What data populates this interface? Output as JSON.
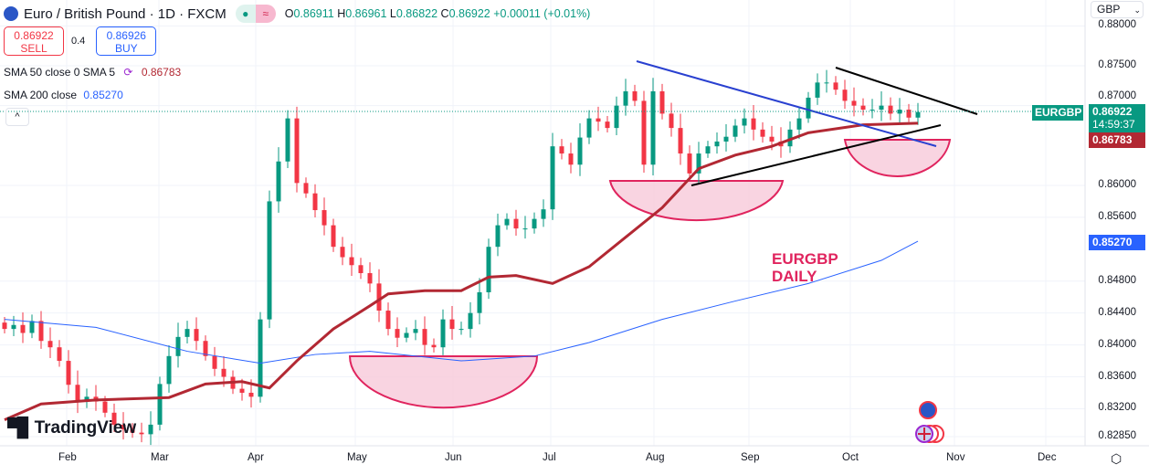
{
  "header": {
    "title": "Euro / British Pound · 1D · FXCM",
    "o_label": "O",
    "o": "0.86911",
    "h_label": "H",
    "h": "0.86961",
    "l_label": "L",
    "l": "0.86822",
    "c_label": "C",
    "c": "0.86922",
    "change": "+0.00011 (+0.01%)",
    "status_icon": "market-open-dot",
    "wave_icon": "≈"
  },
  "trade": {
    "sell_price": "0.86922",
    "sell_label": "SELL",
    "spread": "0.4",
    "buy_price": "0.86926",
    "buy_label": "BUY"
  },
  "indicators": {
    "sma50_label": "SMA 50 close 0 SMA 5",
    "sma50_value": "0.86783",
    "sma200_label": "SMA 200 close",
    "sma200_value": "0.85270"
  },
  "currency": "GBP",
  "collapse_icon": "^",
  "price_tags": {
    "symbol": "EURGBP",
    "last": "0.86922",
    "countdown": "14:59:37",
    "sma50": "0.86783",
    "sma200": "0.85270"
  },
  "annotation": {
    "line1": "EURGBP",
    "line2": "DAILY"
  },
  "logo": "TradingView",
  "colors": {
    "up": "#089981",
    "down": "#f23645",
    "sma50": "#b22833",
    "sma200": "#2962ff",
    "trend_blue": "#2940d0",
    "bowl": "#f8c9da",
    "bowl_edge": "#e0245e"
  },
  "chart_data": {
    "type": "candlestick",
    "title": "Euro / British Pound · 1D · FXCM",
    "x_tick_labels": [
      "Feb",
      "Mar",
      "Apr",
      "May",
      "Jun",
      "Jul",
      "Aug",
      "Sep",
      "Oct",
      "Nov",
      "Dec"
    ],
    "y_tick_labels": [
      "0.88000",
      "0.87500",
      "0.87000",
      "0.86000",
      "0.85600",
      "0.84800",
      "0.84400",
      "0.84000",
      "0.83600",
      "0.83200",
      "0.82850"
    ],
    "ylim": [
      0.8275,
      0.881
    ],
    "closes": [
      0.842,
      0.8425,
      0.8415,
      0.843,
      0.8405,
      0.8397,
      0.838,
      0.835,
      0.8329,
      0.8335,
      0.8329,
      0.8315,
      0.83,
      0.8294,
      0.829,
      0.8288,
      0.83,
      0.8351,
      0.8386,
      0.841,
      0.842,
      0.8405,
      0.8386,
      0.837,
      0.836,
      0.8345,
      0.834,
      0.8335,
      0.8432,
      0.858,
      0.863,
      0.8684,
      0.8603,
      0.859,
      0.8569,
      0.855,
      0.8523,
      0.851,
      0.85,
      0.849,
      0.8477,
      0.8443,
      0.842,
      0.8409,
      0.8415,
      0.842,
      0.84,
      0.8397,
      0.8432,
      0.842,
      0.842,
      0.844,
      0.8466,
      0.8523,
      0.855,
      0.8558,
      0.8546,
      0.8546,
      0.8558,
      0.857,
      0.8649,
      0.864,
      0.8626,
      0.866,
      0.8684,
      0.868,
      0.8672,
      0.87,
      0.8718,
      0.8706,
      0.8626,
      0.8718,
      0.869,
      0.8672,
      0.864,
      0.8615,
      0.864,
      0.8649,
      0.8655,
      0.8661,
      0.8675,
      0.8684,
      0.867,
      0.8661,
      0.8655,
      0.8649,
      0.867,
      0.8684,
      0.871,
      0.8729,
      0.8729,
      0.872,
      0.8706,
      0.87,
      0.8695,
      0.8695,
      0.87,
      0.869,
      0.8695,
      0.8685,
      0.8692
    ],
    "sma50": [
      [
        0,
        0.8306
      ],
      [
        4,
        0.8326
      ],
      [
        10,
        0.8331
      ],
      [
        18,
        0.8334
      ],
      [
        22,
        0.8351
      ],
      [
        26,
        0.8354
      ],
      [
        29,
        0.8346
      ],
      [
        32,
        0.838
      ],
      [
        36,
        0.842
      ],
      [
        40,
        0.8449
      ],
      [
        42,
        0.8464
      ],
      [
        46,
        0.8468
      ],
      [
        50,
        0.8468
      ],
      [
        53,
        0.8485
      ],
      [
        56,
        0.8487
      ],
      [
        60,
        0.8477
      ],
      [
        64,
        0.8498
      ],
      [
        68,
        0.8535
      ],
      [
        72,
        0.8572
      ],
      [
        76,
        0.8621
      ],
      [
        80,
        0.8638
      ],
      [
        84,
        0.8649
      ],
      [
        88,
        0.8666
      ],
      [
        94,
        0.8676
      ],
      [
        100,
        0.8678
      ]
    ],
    "sma200": [
      [
        0,
        0.8432
      ],
      [
        10,
        0.8422
      ],
      [
        20,
        0.8392
      ],
      [
        28,
        0.8377
      ],
      [
        34,
        0.8388
      ],
      [
        40,
        0.8392
      ],
      [
        50,
        0.838
      ],
      [
        58,
        0.8386
      ],
      [
        64,
        0.8403
      ],
      [
        72,
        0.8432
      ],
      [
        80,
        0.8455
      ],
      [
        88,
        0.8477
      ],
      [
        96,
        0.8506
      ],
      [
        100,
        0.853
      ]
    ]
  }
}
